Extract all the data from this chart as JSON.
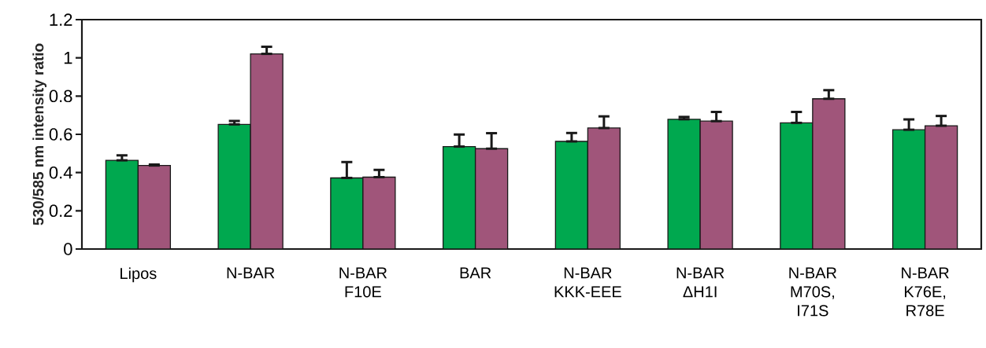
{
  "chart_data": {
    "type": "bar",
    "ylabel": "530/585 nm intensity ratio",
    "categories": [
      "Lipos",
      "N-BAR",
      "N-BAR F10E",
      "BAR",
      "N-BAR KKK-EEE",
      "N-BAR ΔH1I",
      "N-BAR M70S, I71S",
      "N-BAR K76E, R78E"
    ],
    "series": [
      {
        "color": "#00a84f",
        "values": [
          0.464,
          0.652,
          0.372,
          0.536,
          0.563,
          0.679,
          0.66,
          0.624
        ],
        "errors": [
          [
            0.464,
            0.49
          ],
          [
            0.652,
            0.67
          ],
          [
            0.372,
            0.455
          ],
          [
            0.536,
            0.599
          ],
          [
            0.563,
            0.607
          ],
          [
            0.679,
            0.691
          ],
          [
            0.66,
            0.717
          ],
          [
            0.624,
            0.678
          ]
        ]
      },
      {
        "color": "#a0557a",
        "values": [
          0.437,
          1.021,
          0.376,
          0.525,
          0.633,
          0.669,
          0.786,
          0.645
        ],
        "errors": [
          [
            0.437,
            0.442
          ],
          [
            1.021,
            1.058
          ],
          [
            0.376,
            0.414
          ],
          [
            0.525,
            0.606
          ],
          [
            0.633,
            0.694
          ],
          [
            0.669,
            0.717
          ],
          [
            0.786,
            0.831
          ],
          [
            0.645,
            0.696
          ]
        ]
      }
    ],
    "ylim": [
      0,
      1.2
    ],
    "yticks": [
      0,
      0.2,
      0.4,
      0.6,
      0.8,
      1,
      1.2
    ]
  }
}
